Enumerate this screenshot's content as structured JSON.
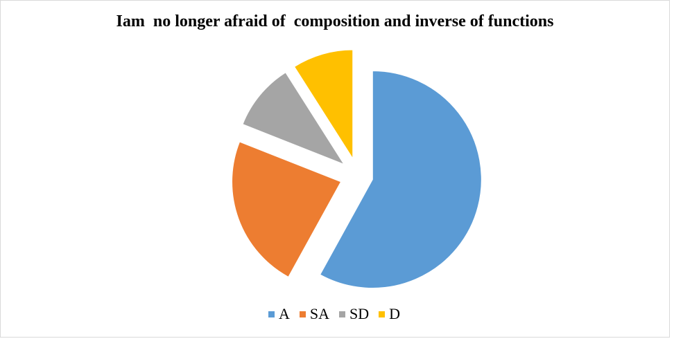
{
  "chart_data": {
    "type": "pie",
    "title": "Iam  no longer afraid of  composition and inverse of functions",
    "categories": [
      "A",
      "SA",
      "SD",
      "D"
    ],
    "values": [
      58,
      23,
      10,
      9
    ],
    "colors": [
      "#5b9bd5",
      "#ed7d31",
      "#a5a5a5",
      "#ffc000"
    ],
    "exploded": true,
    "legend": "bottom",
    "start_angle_deg": 0,
    "direction": "clockwise"
  }
}
